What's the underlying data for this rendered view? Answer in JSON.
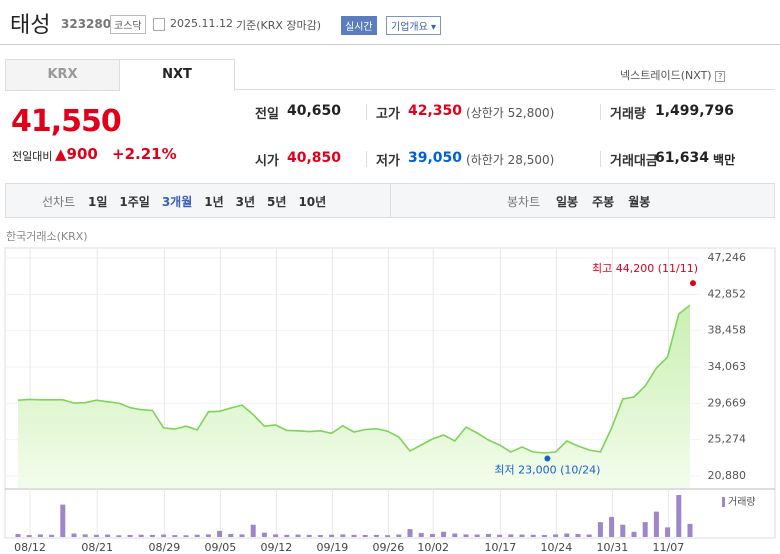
{
  "header": {
    "name": "태성",
    "code": "323280",
    "market": "코스닥",
    "date": "2025.11.12",
    "basis": "기준(KRX 장마감)",
    "realtime": "실시간",
    "company_info": "기업개요"
  },
  "tabs": [
    "KRX",
    "NXT"
  ],
  "nxt_link": "넥스트레이드(NXT)",
  "price": {
    "current": "41,550",
    "change_label": "전일대비",
    "change": "▲900",
    "change_rate": "+2.21%"
  },
  "quotes": [
    {
      "label": "전일",
      "value": "40,650",
      "color": "#222222"
    },
    {
      "label": "고가",
      "value": "42,350",
      "color": "#e0001a",
      "note": "(상한가 52,800)"
    },
    {
      "label": "거래량",
      "value": "1,499,796",
      "color": "#222222"
    },
    {
      "label": "시가",
      "value": "40,850",
      "color": "#e0001a"
    },
    {
      "label": "저가",
      "value": "39,050",
      "color": "#0062d0",
      "note": "(하한가 28,500)"
    },
    {
      "label": "거래대금",
      "value": "61,634",
      "color": "#222222",
      "note": "백만"
    }
  ],
  "toolbar": {
    "line_label": "선차트",
    "line_periods": [
      "1일",
      "1주일",
      "3개월",
      "1년",
      "3년",
      "5년",
      "10년"
    ],
    "selected": 2,
    "candle_label": "봉차트",
    "candle_periods": [
      "일봉",
      "주봉",
      "월봉"
    ]
  },
  "chart_data": {
    "type": "line",
    "subtitle": "한국거래소(KRX)",
    "categories": [
      "08/12",
      null,
      null,
      null,
      null,
      null,
      "08/21",
      null,
      null,
      null,
      null,
      null,
      "08/29",
      null,
      null,
      null,
      null,
      "09/05",
      null,
      null,
      null,
      null,
      "09/12",
      null,
      null,
      null,
      null,
      "09/19",
      null,
      null,
      null,
      null,
      "09/26",
      null,
      null,
      null,
      "10/02",
      null,
      null,
      null,
      null,
      null,
      "10/17",
      null,
      null,
      null,
      null,
      "10/24",
      null,
      null,
      null,
      null,
      "10/31",
      null,
      null,
      null,
      null,
      "11/07",
      null,
      null,
      null
    ],
    "series": [
      {
        "color": "#7ed35a",
        "values": [
          30050,
          30150,
          30100,
          30100,
          30100,
          29700,
          29750,
          30050,
          29850,
          29700,
          29150,
          28900,
          28800,
          26700,
          26550,
          26900,
          26450,
          28650,
          28700,
          29100,
          29450,
          28300,
          26900,
          27050,
          26400,
          26350,
          26250,
          26350,
          26050,
          26950,
          26200,
          26500,
          26600,
          26300,
          25600,
          23900,
          24630,
          25350,
          25840,
          25110,
          26800,
          26080,
          25230,
          24630,
          23780,
          24390,
          23780,
          23660,
          23780,
          25110,
          24510,
          24020,
          23780,
          26690,
          30190,
          30430,
          31760,
          33940,
          35270,
          40470,
          41550
        ]
      }
    ],
    "volume": {
      "name": "거래량",
      "color": "#9d86c9",
      "values": [
        350000,
        220000,
        300000,
        250000,
        3700000,
        400000,
        300000,
        250000,
        280000,
        200000,
        230000,
        260000,
        240000,
        280000,
        220000,
        200000,
        260000,
        300000,
        700000,
        350000,
        300000,
        1400000,
        500000,
        300000,
        250000,
        280000,
        240000,
        220000,
        260000,
        300000,
        250000,
        230000,
        240000,
        210000,
        280000,
        900000,
        450000,
        350000,
        600000,
        400000,
        300000,
        280000,
        350000,
        260000,
        300000,
        280000,
        250000,
        230000,
        300000,
        400000,
        350000,
        280000,
        1700000,
        2300000,
        1400000,
        600000,
        1700000,
        2900000,
        1100000,
        4800000,
        1499796
      ]
    },
    "ylim": [
      20880,
      47246
    ],
    "yticks": [
      {
        "value": 47246,
        "label": "47,246"
      },
      {
        "value": 42852,
        "label": "42,852"
      },
      {
        "value": 38458,
        "label": "38,458"
      },
      {
        "value": 34063,
        "label": "34,063"
      },
      {
        "value": 29669,
        "label": "29,669"
      },
      {
        "value": 25274,
        "label": "25,274"
      },
      {
        "value": 20880,
        "label": "20,880"
      }
    ],
    "high": {
      "label": "최고 44,200 (11/11)",
      "value": 44200,
      "color": "#e0001a"
    },
    "low": {
      "label": "최저 23,000 (10/24)",
      "value": 23000,
      "color": "#1a63c6"
    },
    "grid": true
  }
}
